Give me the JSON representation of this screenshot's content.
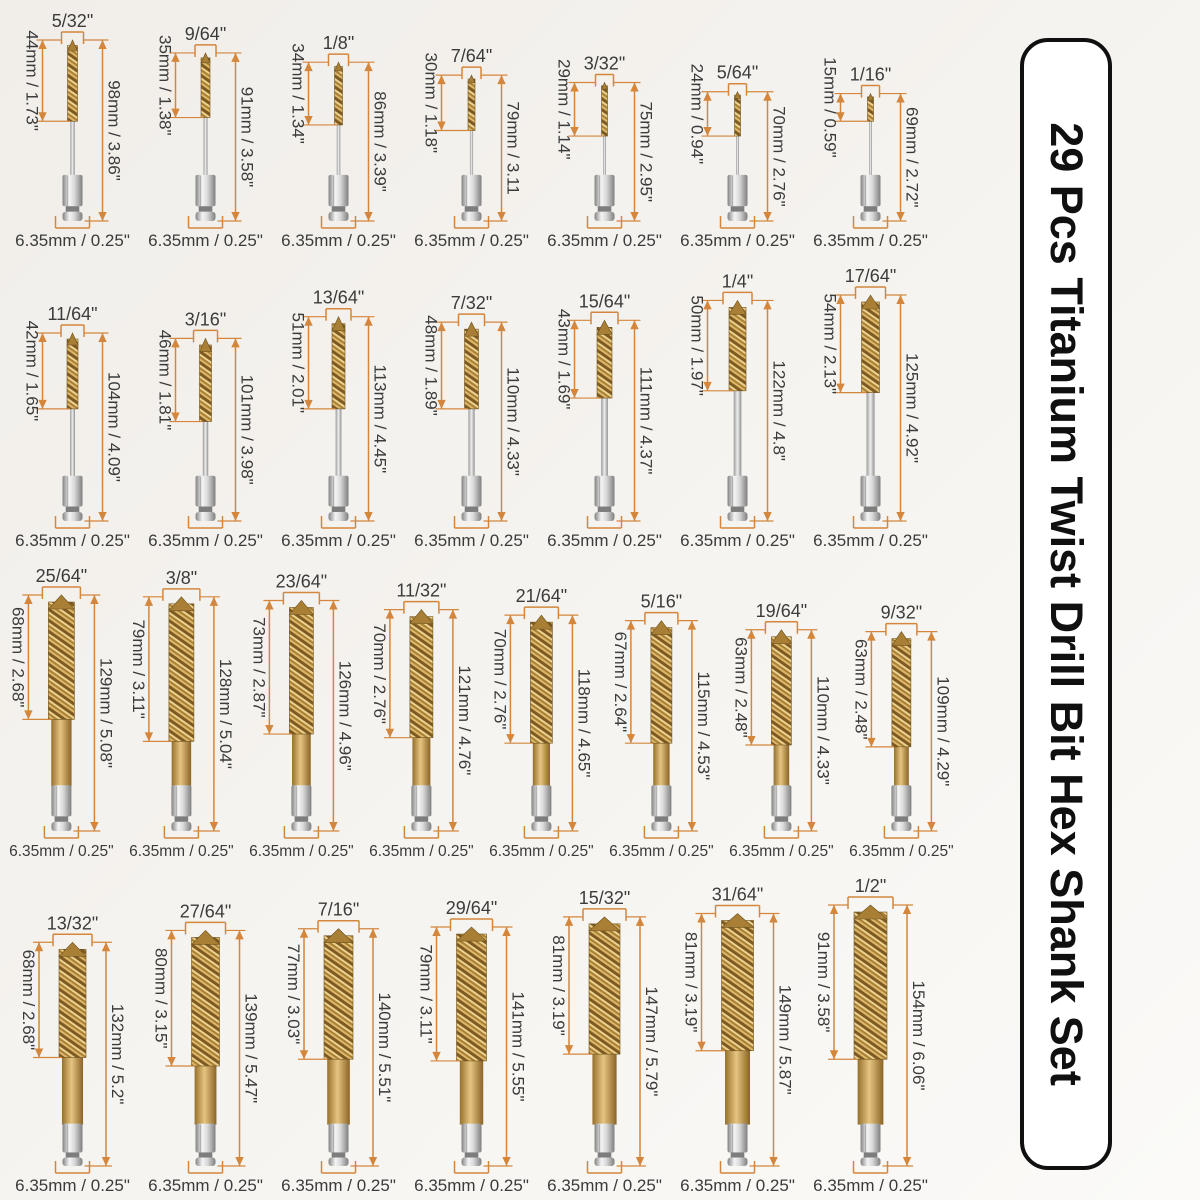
{
  "banner": {
    "text": "29 Pcs Titanium Twist Drill Bit Hex Shank Set"
  },
  "colors": {
    "dimension": "#d4863c",
    "label": "#3b3b3b",
    "banner_text": "#101010",
    "flute_gold": "#c49a4d",
    "steel_light": "#f4f4f4",
    "steel_dark": "#7f7f7f",
    "background": "#f4f2ee"
  },
  "rows": [
    {
      "bits": [
        {
          "size": "5/32\"",
          "flute": "44mm / 1.73\"",
          "total": "98mm / 3.86\"",
          "shank": "6.35mm / 0.25\""
        },
        {
          "size": "9/64\"",
          "flute": "35mm / 1.38\"",
          "total": "91mm / 3.58\"",
          "shank": "6.35mm / 0.25\""
        },
        {
          "size": "1/8\"",
          "flute": "34mm / 1.34\"",
          "total": "86mm / 3.39\"",
          "shank": "6.35mm / 0.25\""
        },
        {
          "size": "7/64\"",
          "flute": "30mm / 1.18\"",
          "total": "79mm / 3.11",
          "shank": "6.35mm / 0.25\""
        },
        {
          "size": "3/32\"",
          "flute": "29mm / 1.14\"",
          "total": "75mm / 2.95\"",
          "shank": "6.35mm / 0.25\""
        },
        {
          "size": "5/64\"",
          "flute": "24mm / 0.94\"",
          "total": "70mm / 2.76\"",
          "shank": "6.35mm / 0.25\""
        },
        {
          "size": "1/16\"",
          "flute": "15mm / 0.59\"",
          "total": "69mm / 2.72\"",
          "shank": "6.35mm / 0.25\""
        }
      ]
    },
    {
      "bits": [
        {
          "size": "11/64\"",
          "flute": "42mm / 1.65\"",
          "total": "104mm / 4.09\"",
          "shank": "6.35mm / 0.25\""
        },
        {
          "size": "3/16\"",
          "flute": "46mm / 1.81\"",
          "total": "101mm / 3.98\"",
          "shank": "6.35mm / 0.25\""
        },
        {
          "size": "13/64\"",
          "flute": "51mm / 2.01\"",
          "total": "113mm / 4.45\"",
          "shank": "6.35mm / 0.25\""
        },
        {
          "size": "7/32\"",
          "flute": "48mm / 1.89\"",
          "total": "110mm / 4.33\"",
          "shank": "6.35mm / 0.25\""
        },
        {
          "size": "15/64\"",
          "flute": "43mm / 1.69\"",
          "total": "111mm / 4.37\"",
          "shank": "6.35mm / 0.25\""
        },
        {
          "size": "1/4\"",
          "flute": "50mm / 1.97\"",
          "total": "122mm / 4.8\"",
          "shank": "6.35mm / 0.25\""
        },
        {
          "size": "17/64\"",
          "flute": "54mm / 2.13\"",
          "total": "125mm / 4.92\"",
          "shank": "6.35mm / 0.25\""
        }
      ]
    },
    {
      "bits": [
        {
          "size": "25/64\"",
          "flute": "68mm / 2.68\"",
          "total": "129mm / 5.08\"",
          "shank": "6.35mm / 0.25\""
        },
        {
          "size": "3/8\"",
          "flute": "79mm / 3.11\"",
          "total": "128mm / 5.04\"",
          "shank": "6.35mm / 0.25\""
        },
        {
          "size": "23/64\"",
          "flute": "73mm / 2.87\"",
          "total": "126mm / 4.96\"",
          "shank": "6.35mm / 0.25\""
        },
        {
          "size": "11/32\"",
          "flute": "70mm / 2.76\"",
          "total": "121mm / 4.76\"",
          "shank": "6.35mm / 0.25\""
        },
        {
          "size": "21/64\"",
          "flute": "70mm / 2.76\"",
          "total": "118mm / 4.65\"",
          "shank": "6.35mm / 0.25\""
        },
        {
          "size": "5/16\"",
          "flute": "67mm / 2.64\"",
          "total": "115mm / 4.53\"",
          "shank": "6.35mm / 0.25\""
        },
        {
          "size": "19/64\"",
          "flute": "63mm / 2.48\"",
          "total": "110mm / 4.33\"",
          "shank": "6.35mm / 0.25\""
        },
        {
          "size": "9/32\"",
          "flute": "63mm / 2.48\"",
          "total": "109mm / 4.29\"",
          "shank": "6.35mm / 0.25\""
        }
      ]
    },
    {
      "bits": [
        {
          "size": "13/32\"",
          "flute": "68mm / 2.68\"",
          "total": "132mm / 5.2\"",
          "shank": "6.35mm / 0.25\""
        },
        {
          "size": "27/64\"",
          "flute": "80mm / 3.15\"",
          "total": "139mm / 5.47\"",
          "shank": "6.35mm / 0.25\""
        },
        {
          "size": "7/16\"",
          "flute": "77mm / 3.03\"",
          "total": "140mm / 5.51\"",
          "shank": "6.35mm / 0.25\""
        },
        {
          "size": "29/64\"",
          "flute": "79mm / 3.11\"",
          "total": "141mm / 5.55\"",
          "shank": "6.35mm / 0.25\""
        },
        {
          "size": "15/32\"",
          "flute": "81mm / 3.19\"",
          "total": "147mm / 5.79\"",
          "shank": "6.35mm / 0.25\""
        },
        {
          "size": "31/64\"",
          "flute": "81mm / 3.19\"",
          "total": "149mm / 5.87\"",
          "shank": "6.35mm / 0.25\""
        },
        {
          "size": "1/2\"",
          "flute": "91mm / 3.58\"",
          "total": "154mm / 6.06\"",
          "shank": "6.35mm / 0.25\""
        }
      ]
    }
  ]
}
